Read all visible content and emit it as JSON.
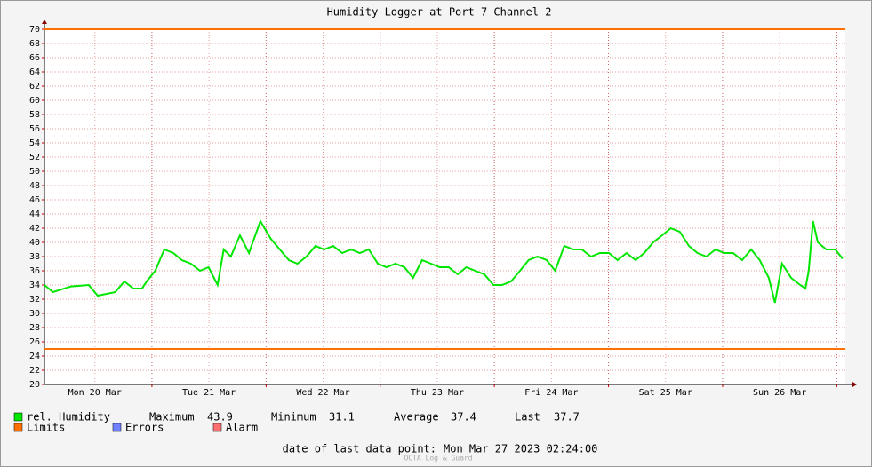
{
  "chart_data": {
    "type": "line",
    "title": "Humidity Logger at Port 7 Channel 2",
    "xlim": [
      1.4,
      169.8
    ],
    "xticks": [
      {
        "value": 12,
        "label": "Mon 20 Mar"
      },
      {
        "value": 36,
        "label": "Tue 21 Mar"
      },
      {
        "value": 60,
        "label": "Wed 22 Mar"
      },
      {
        "value": 84,
        "label": "Thu 23 Mar"
      },
      {
        "value": 108,
        "label": "Fri 24 Mar"
      },
      {
        "value": 132,
        "label": "Sat 25 Mar"
      },
      {
        "value": 156,
        "label": "Sun 26 Mar"
      }
    ],
    "xgrid": [
      24,
      48,
      72,
      96,
      120,
      144,
      168
    ],
    "ylim": [
      20,
      70
    ],
    "yticks": [
      20,
      22,
      24,
      26,
      28,
      30,
      32,
      34,
      36,
      38,
      40,
      42,
      44,
      46,
      48,
      50,
      52,
      54,
      56,
      58,
      60,
      62,
      64,
      66,
      68,
      70
    ],
    "grid": true,
    "x": [
      1.4,
      3.2,
      7.0,
      10.7,
      12.6,
      16.3,
      18.2,
      20.1,
      21.9,
      22.9,
      24.7,
      26.6,
      28.5,
      30.3,
      32.2,
      34.1,
      35.9,
      37.8,
      39.1,
      40.6,
      42.5,
      44.4,
      46.8,
      49.0,
      50.9,
      52.8,
      54.6,
      56.5,
      58.4,
      60.2,
      62.1,
      64.0,
      65.9,
      67.7,
      69.6,
      71.5,
      73.3,
      75.2,
      77.1,
      78.9,
      80.8,
      82.7,
      84.5,
      86.4,
      88.3,
      90.1,
      92.0,
      93.9,
      95.8,
      97.6,
      99.5,
      101.4,
      103.2,
      105.1,
      107.0,
      108.8,
      110.7,
      112.6,
      114.4,
      116.3,
      118.2,
      120.1,
      121.9,
      123.8,
      125.7,
      127.5,
      129.4,
      131.3,
      133.1,
      135.0,
      136.9,
      138.7,
      140.6,
      142.5,
      144.3,
      146.2,
      148.1,
      150.0,
      151.8,
      153.7,
      155.0,
      156.5,
      158.4,
      160.3,
      161.4,
      162.1,
      163.0,
      164.0,
      165.8,
      167.7,
      169.2
    ],
    "series": [
      {
        "name": "rel. Humidity",
        "color": "#00e600",
        "values": [
          34,
          33,
          33.8,
          34,
          32.5,
          33,
          34.5,
          33.5,
          33.5,
          34.5,
          36,
          39,
          38.5,
          37.5,
          37,
          36,
          36.5,
          34,
          39,
          38,
          41,
          38.5,
          43,
          40.5,
          39,
          37.5,
          37,
          38,
          39.5,
          39,
          39.5,
          38.5,
          39,
          38.5,
          39,
          37,
          36.5,
          37,
          36.5,
          35,
          37.5,
          37,
          36.5,
          36.5,
          35.5,
          36.5,
          36,
          35.5,
          34,
          34,
          34.5,
          36,
          37.5,
          38,
          37.5,
          36,
          39.5,
          39,
          39,
          38,
          38.5,
          38.5,
          37.5,
          38.5,
          37.5,
          38.5,
          40,
          41,
          42,
          41.5,
          39.5,
          38.5,
          38,
          39,
          38.5,
          38.5,
          37.5,
          39,
          37.5,
          35,
          31.5,
          37,
          35,
          34,
          33.5,
          36,
          43,
          40,
          39,
          39,
          37.7
        ]
      }
    ],
    "limits": {
      "name": "Limits",
      "color": "#ff7000",
      "values": [
        70,
        25
      ]
    },
    "legend_extra": [
      {
        "name": "Errors",
        "color": "#7080ff"
      },
      {
        "name": "Alarm",
        "color": "#ff7070"
      }
    ],
    "stats": [
      {
        "label": "Maximum",
        "value": 43.9
      },
      {
        "label": "Minimum",
        "value": 31.1
      },
      {
        "label": "Average",
        "value": 37.4
      },
      {
        "label": "Last",
        "value": 37.7
      }
    ],
    "last_point": {
      "label": "date of last data point:",
      "value": "Mon Mar 27 2023 02:24:00"
    },
    "footer": "OCTA Log & Guard"
  }
}
